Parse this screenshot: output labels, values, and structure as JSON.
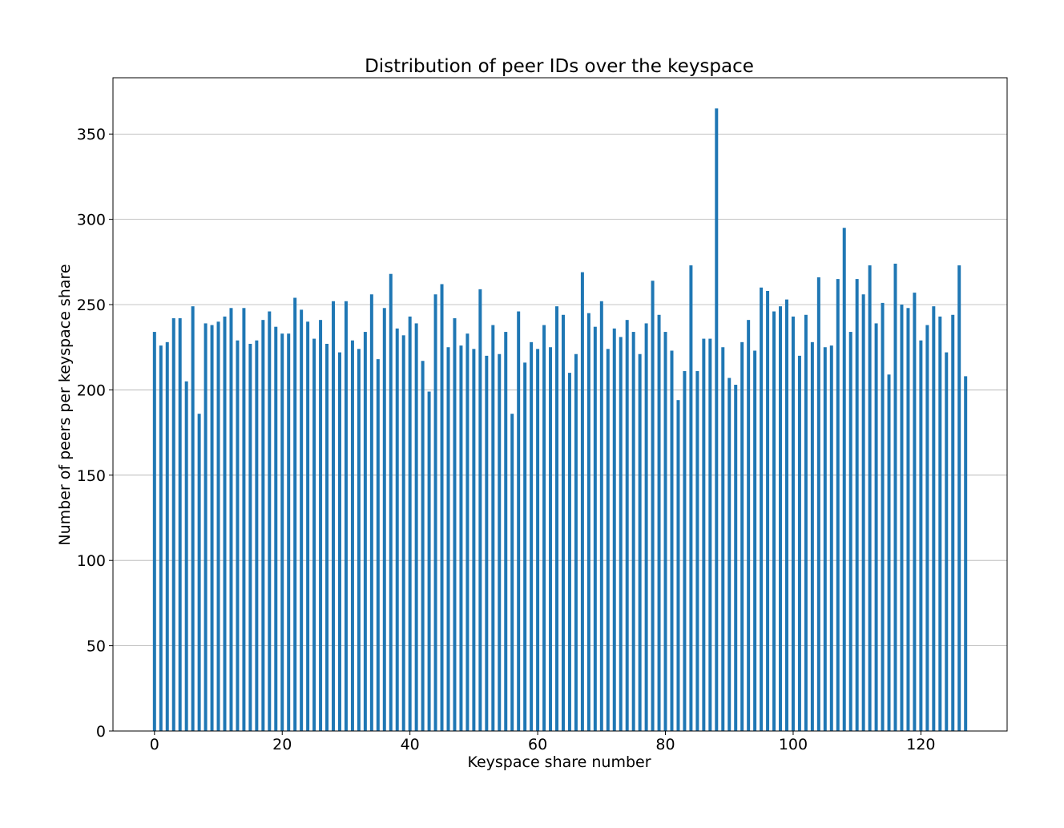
{
  "chart_data": {
    "type": "bar",
    "title": "Distribution of peer IDs over the keyspace",
    "xlabel": "Keyspace share number",
    "ylabel": "Number of peers per keyspace share",
    "xlim": [
      -6.5,
      133.5
    ],
    "ylim": [
      0,
      383
    ],
    "xticks": [
      0,
      20,
      40,
      60,
      80,
      100,
      120
    ],
    "yticks": [
      0,
      50,
      100,
      150,
      200,
      250,
      300,
      350
    ],
    "grid": "y",
    "bar_color": "#1f77b4",
    "x": [
      0,
      1,
      2,
      3,
      4,
      5,
      6,
      7,
      8,
      9,
      10,
      11,
      12,
      13,
      14,
      15,
      16,
      17,
      18,
      19,
      20,
      21,
      22,
      23,
      24,
      25,
      26,
      27,
      28,
      29,
      30,
      31,
      32,
      33,
      34,
      35,
      36,
      37,
      38,
      39,
      40,
      41,
      42,
      43,
      44,
      45,
      46,
      47,
      48,
      49,
      50,
      51,
      52,
      53,
      54,
      55,
      56,
      57,
      58,
      59,
      60,
      61,
      62,
      63,
      64,
      65,
      66,
      67,
      68,
      69,
      70,
      71,
      72,
      73,
      74,
      75,
      76,
      77,
      78,
      79,
      80,
      81,
      82,
      83,
      84,
      85,
      86,
      87,
      88,
      89,
      90,
      91,
      92,
      93,
      94,
      95,
      96,
      97,
      98,
      99,
      100,
      101,
      102,
      103,
      104,
      105,
      106,
      107,
      108,
      109,
      110,
      111,
      112,
      113,
      114,
      115,
      116,
      117,
      118,
      119,
      120,
      121,
      122,
      123,
      124,
      125,
      126,
      127
    ],
    "values": [
      234,
      226,
      228,
      242,
      242,
      205,
      249,
      186,
      239,
      238,
      240,
      243,
      248,
      229,
      248,
      227,
      229,
      241,
      246,
      237,
      233,
      233,
      254,
      247,
      240,
      230,
      241,
      227,
      252,
      222,
      252,
      229,
      224,
      234,
      256,
      218,
      248,
      268,
      236,
      232,
      243,
      239,
      217,
      199,
      256,
      262,
      225,
      242,
      226,
      233,
      224,
      259,
      220,
      238,
      221,
      234,
      186,
      246,
      216,
      228,
      224,
      238,
      225,
      249,
      244,
      210,
      221,
      269,
      245,
      237,
      252,
      224,
      236,
      231,
      241,
      234,
      221,
      239,
      264,
      244,
      234,
      223,
      194,
      211,
      273,
      211,
      230,
      230,
      365,
      225,
      207,
      203,
      228,
      241,
      223,
      260,
      258,
      246,
      249,
      253,
      243,
      220,
      244,
      228,
      266,
      225,
      226,
      265,
      295,
      234,
      265,
      256,
      273,
      239,
      251,
      209,
      274,
      250,
      248,
      257,
      229,
      238,
      249,
      243,
      222,
      244,
      273,
      208
    ]
  }
}
